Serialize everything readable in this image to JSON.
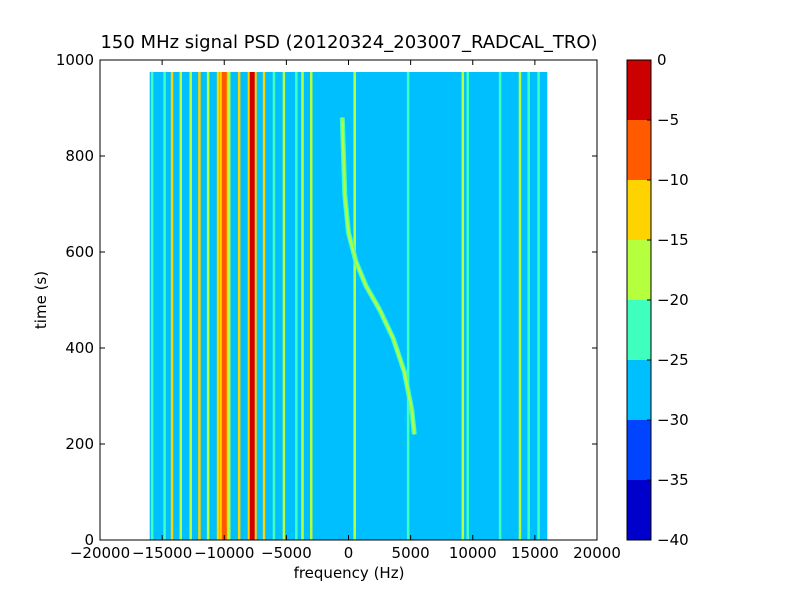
{
  "chart_data": {
    "type": "heatmap",
    "title": "150 MHz signal PSD (20120324_203007_RADCAL_TRO)",
    "xlabel": "frequency (Hz)",
    "ylabel": "time (s)",
    "xlim": [
      -20000,
      20000
    ],
    "ylim": [
      0,
      1000
    ],
    "x_ticks": [
      -20000,
      -15000,
      -10000,
      -5000,
      0,
      5000,
      10000,
      15000,
      20000
    ],
    "x_tick_labels": [
      "−20000",
      "−15000",
      "−10000",
      "−5000",
      "0",
      "5000",
      "10000",
      "15000",
      "20000"
    ],
    "y_ticks": [
      0,
      200,
      400,
      600,
      800,
      1000
    ],
    "y_tick_labels": [
      "0",
      "200",
      "400",
      "600",
      "800",
      "1000"
    ],
    "data_extent": {
      "freq": [
        -16000,
        16000
      ],
      "time": [
        0,
        975
      ]
    },
    "background_level": -27.5,
    "colorbar": {
      "levels": [
        -40,
        -35,
        -30,
        -25,
        -20,
        -15,
        -10,
        -5,
        0
      ],
      "tick_labels": [
        "−40",
        "−35",
        "−30",
        "−25",
        "−20",
        "−15",
        "−10",
        "−5",
        "0"
      ],
      "colors": [
        "#0000cd",
        "#0044ff",
        "#00bfff",
        "#3fffbf",
        "#b5ff3f",
        "#ffd300",
        "#ff5a00",
        "#cd0000"
      ]
    },
    "vertical_lines": [
      {
        "freq": -15800,
        "level": -22.5
      },
      {
        "freq": -14800,
        "level": -22.5
      },
      {
        "freq": -14200,
        "level": -12.5
      },
      {
        "freq": -13500,
        "level": -17.5
      },
      {
        "freq": -12700,
        "level": -17.5
      },
      {
        "freq": -12000,
        "level": -12.5
      },
      {
        "freq": -11300,
        "level": -17.5
      },
      {
        "freq": -10500,
        "level": -12.5
      },
      {
        "freq": -10000,
        "level": -7.5
      },
      {
        "freq": -9600,
        "level": -17.5
      },
      {
        "freq": -8800,
        "level": -12.5
      },
      {
        "freq": -7750,
        "level": -2.5
      },
      {
        "freq": -6800,
        "level": -12.5
      },
      {
        "freq": -6000,
        "level": -22.5
      },
      {
        "freq": -5200,
        "level": -17.5
      },
      {
        "freq": -4200,
        "level": -22.5
      },
      {
        "freq": -3700,
        "level": -17.5
      },
      {
        "freq": -3000,
        "level": -17.5
      },
      {
        "freq": 500,
        "level": -17.5
      },
      {
        "freq": 4800,
        "level": -22.5
      },
      {
        "freq": 9200,
        "level": -17.5
      },
      {
        "freq": 9600,
        "level": -22.5
      },
      {
        "freq": 12200,
        "level": -22.5
      },
      {
        "freq": 13800,
        "level": -17.5
      },
      {
        "freq": 14500,
        "level": -22.5
      },
      {
        "freq": 15300,
        "level": -22.5
      }
    ],
    "drifting_signal": {
      "level": -17.5,
      "points": [
        {
          "freq": 5300,
          "time": 220
        },
        {
          "freq": 5100,
          "time": 270
        },
        {
          "freq": 4500,
          "time": 350
        },
        {
          "freq": 3600,
          "time": 420
        },
        {
          "freq": 2500,
          "time": 480
        },
        {
          "freq": 1400,
          "time": 530
        },
        {
          "freq": 600,
          "time": 580
        },
        {
          "freq": 0,
          "time": 640
        },
        {
          "freq": -300,
          "time": 720
        },
        {
          "freq": -400,
          "time": 800
        },
        {
          "freq": -500,
          "time": 880
        }
      ]
    }
  }
}
